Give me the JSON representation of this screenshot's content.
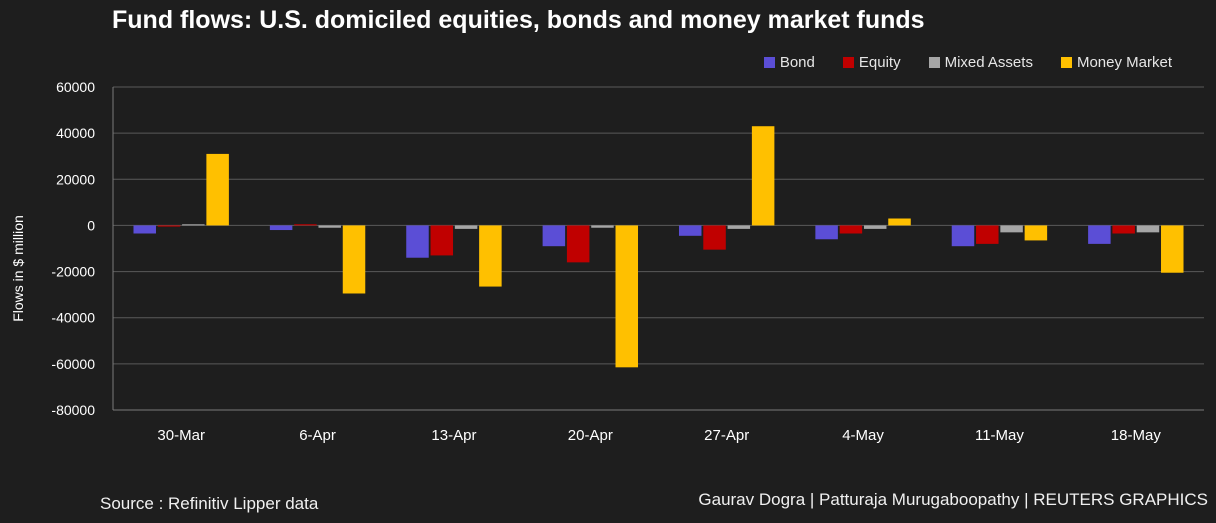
{
  "chart_data": {
    "type": "bar",
    "title": "Fund flows: U.S. domiciled equities, bonds and money market funds",
    "xlabel": "",
    "ylabel": "Flows in $ million",
    "ylim": [
      -80000,
      60000
    ],
    "yticks": [
      60000,
      40000,
      20000,
      0,
      -20000,
      -40000,
      -60000,
      -80000
    ],
    "grid": true,
    "legend_position": "top-right",
    "categories": [
      "30-Mar",
      "6-Apr",
      "13-Apr",
      "20-Apr",
      "27-Apr",
      "4-May",
      "11-May",
      "18-May"
    ],
    "series": [
      {
        "name": "Bond",
        "color": "#5b4ed6",
        "values": [
          -3500,
          -2000,
          -14000,
          -9000,
          -4500,
          -6000,
          -9000,
          -8000
        ]
      },
      {
        "name": "Equity",
        "color": "#c00000",
        "values": [
          -500,
          500,
          -13000,
          -16000,
          -10500,
          -3500,
          -8000,
          -3500
        ]
      },
      {
        "name": "Mixed Assets",
        "color": "#a6a6a6",
        "values": [
          500,
          -1000,
          -1500,
          -1000,
          -1500,
          -1500,
          -3000,
          -3000
        ]
      },
      {
        "name": "Money Market",
        "color": "#ffc000",
        "values": [
          31000,
          -29500,
          -26500,
          -61500,
          43000,
          3000,
          -6500,
          -20500
        ]
      }
    ]
  },
  "footer": {
    "source": "Source : Refinitiv Lipper data",
    "credit": "Gaurav Dogra | Patturaja Murugaboopathy | REUTERS GRAPHICS"
  }
}
